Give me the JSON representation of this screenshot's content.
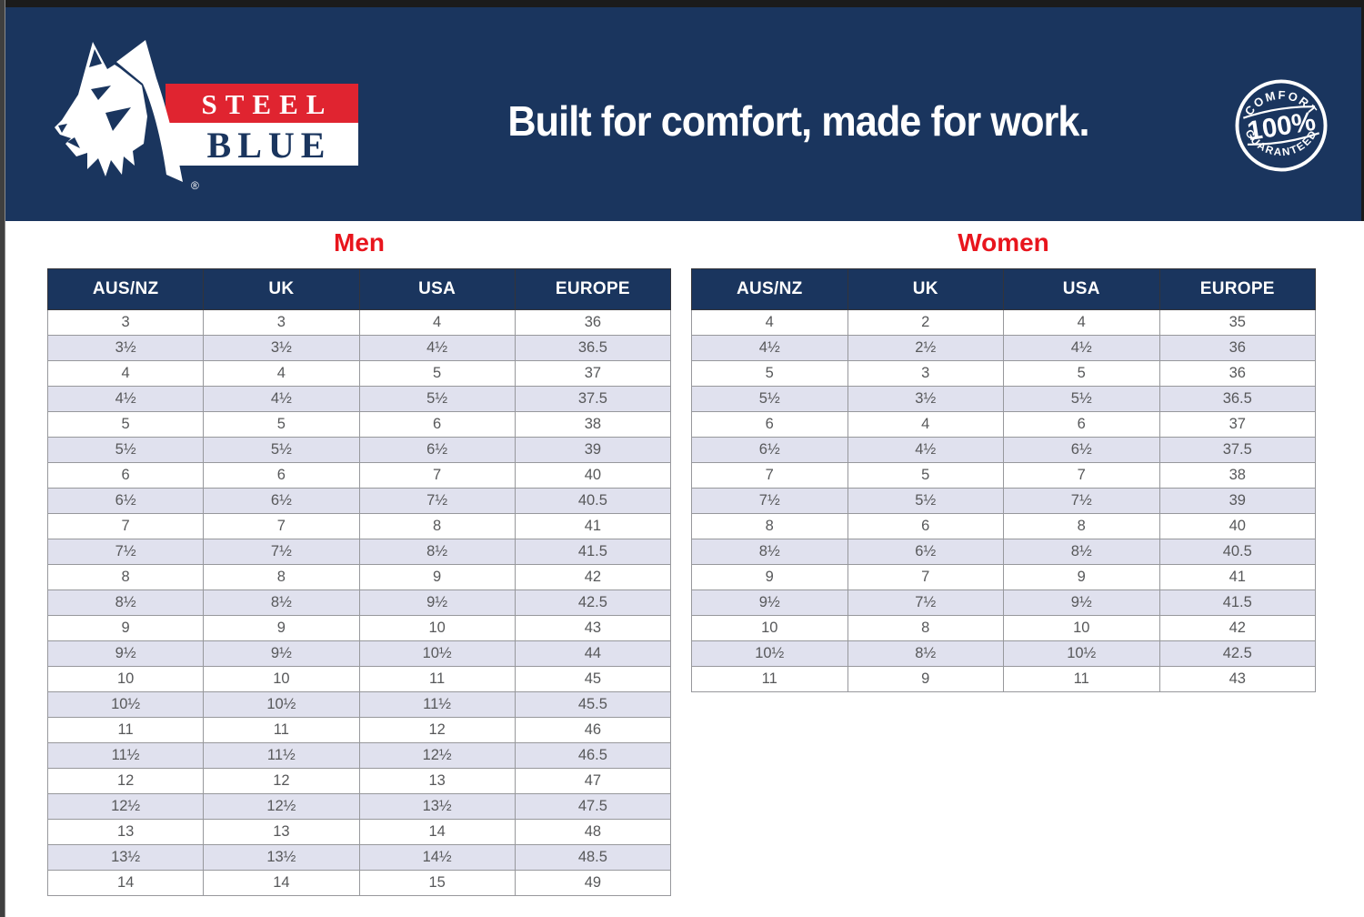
{
  "colors": {
    "navy": "#1a355e",
    "brand_red": "#e8151d",
    "row_alt": "#e0e1ee",
    "cell_text": "#57585a"
  },
  "banner": {
    "tagline": "Built for comfort, made for work.",
    "logo": {
      "steel": "STEEL",
      "blue": "BLUE",
      "registered": "®"
    },
    "badge": {
      "top": "COMFORT",
      "middle": "100%",
      "bottom": "GUARANTEED"
    }
  },
  "men": {
    "title": "Men",
    "columns": [
      "AUS/NZ",
      "UK",
      "USA",
      "EUROPE"
    ],
    "rows": [
      [
        "3",
        "3",
        "4",
        "36"
      ],
      [
        "3½",
        "3½",
        "4½",
        "36.5"
      ],
      [
        "4",
        "4",
        "5",
        "37"
      ],
      [
        "4½",
        "4½",
        "5½",
        "37.5"
      ],
      [
        "5",
        "5",
        "6",
        "38"
      ],
      [
        "5½",
        "5½",
        "6½",
        "39"
      ],
      [
        "6",
        "6",
        "7",
        "40"
      ],
      [
        "6½",
        "6½",
        "7½",
        "40.5"
      ],
      [
        "7",
        "7",
        "8",
        "41"
      ],
      [
        "7½",
        "7½",
        "8½",
        "41.5"
      ],
      [
        "8",
        "8",
        "9",
        "42"
      ],
      [
        "8½",
        "8½",
        "9½",
        "42.5"
      ],
      [
        "9",
        "9",
        "10",
        "43"
      ],
      [
        "9½",
        "9½",
        "10½",
        "44"
      ],
      [
        "10",
        "10",
        "11",
        "45"
      ],
      [
        "10½",
        "10½",
        "11½",
        "45.5"
      ],
      [
        "11",
        "11",
        "12",
        "46"
      ],
      [
        "11½",
        "11½",
        "12½",
        "46.5"
      ],
      [
        "12",
        "12",
        "13",
        "47"
      ],
      [
        "12½",
        "12½",
        "13½",
        "47.5"
      ],
      [
        "13",
        "13",
        "14",
        "48"
      ],
      [
        "13½",
        "13½",
        "14½",
        "48.5"
      ],
      [
        "14",
        "14",
        "15",
        "49"
      ]
    ]
  },
  "women": {
    "title": "Women",
    "columns": [
      "AUS/NZ",
      "UK",
      "USA",
      "EUROPE"
    ],
    "rows": [
      [
        "4",
        "2",
        "4",
        "35"
      ],
      [
        "4½",
        "2½",
        "4½",
        "36"
      ],
      [
        "5",
        "3",
        "5",
        "36"
      ],
      [
        "5½",
        "3½",
        "5½",
        "36.5"
      ],
      [
        "6",
        "4",
        "6",
        "37"
      ],
      [
        "6½",
        "4½",
        "6½",
        "37.5"
      ],
      [
        "7",
        "5",
        "7",
        "38"
      ],
      [
        "7½",
        "5½",
        "7½",
        "39"
      ],
      [
        "8",
        "6",
        "8",
        "40"
      ],
      [
        "8½",
        "6½",
        "8½",
        "40.5"
      ],
      [
        "9",
        "7",
        "9",
        "41"
      ],
      [
        "9½",
        "7½",
        "9½",
        "41.5"
      ],
      [
        "10",
        "8",
        "10",
        "42"
      ],
      [
        "10½",
        "8½",
        "10½",
        "42.5"
      ],
      [
        "11",
        "9",
        "11",
        "43"
      ]
    ]
  }
}
